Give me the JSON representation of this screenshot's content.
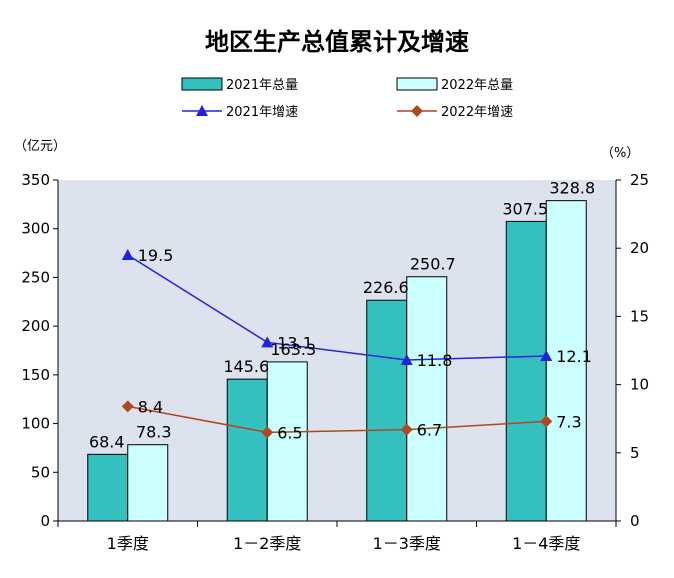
{
  "chart_data": {
    "type": "bar",
    "title": "地区生产总值累计及增速",
    "categories": [
      "1季度",
      "1－2季度",
      "1－3季度",
      "1－4季度"
    ],
    "series": [
      {
        "name": "2021年总量",
        "kind": "bar",
        "axis": "left",
        "color": "#33C0BE",
        "values": [
          68.4,
          145.6,
          226.6,
          307.5
        ],
        "labels": [
          "68.4",
          "145.6",
          "226.6",
          "307.5"
        ]
      },
      {
        "name": "2022年总量",
        "kind": "bar",
        "axis": "left",
        "color": "#CCFFFF",
        "values": [
          78.3,
          163.3,
          250.7,
          328.8
        ],
        "labels": [
          "78.3",
          "163.3",
          "250.7",
          "328.8"
        ]
      },
      {
        "name": "2021年增速",
        "kind": "line",
        "axis": "right",
        "color": "#2222DD",
        "marker": "triangle",
        "values": [
          19.5,
          13.1,
          11.8,
          12.1
        ],
        "labels": [
          "19.5",
          "13.1",
          "11.8",
          "12.1"
        ]
      },
      {
        "name": "2022年增速",
        "kind": "line",
        "axis": "right",
        "color": "#B0471E",
        "marker": "diamond",
        "values": [
          8.4,
          6.5,
          6.7,
          7.3
        ],
        "labels": [
          "8.4",
          "6.5",
          "6.7",
          "7.3"
        ]
      }
    ],
    "y_left": {
      "label": "（亿元）",
      "min": 0,
      "max": 350,
      "ticks": [
        "0",
        "50",
        "100",
        "150",
        "200",
        "250",
        "300",
        "350"
      ]
    },
    "y_right": {
      "label": "（%）",
      "min": 0,
      "max": 25,
      "ticks": [
        "0",
        "5",
        "10",
        "15",
        "20",
        "25"
      ]
    },
    "plot_background": "#DCE3EF",
    "grid": false,
    "legend_position": "top"
  }
}
